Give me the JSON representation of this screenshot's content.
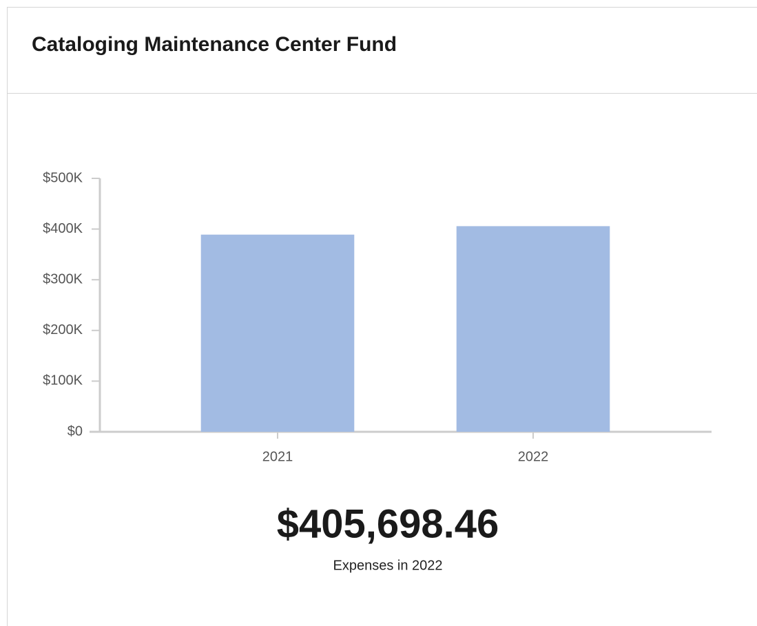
{
  "chart_data": {
    "type": "bar",
    "title": "Cataloging Maintenance Center Fund",
    "categories": [
      "2021",
      "2022"
    ],
    "values": [
      389000,
      405698.46
    ],
    "value_labels": [
      null,
      "$405,698.46"
    ],
    "caption": "Expenses in 2022",
    "color": "#a2bbe3",
    "ylim": [
      0,
      500000
    ],
    "yticks": [
      {
        "value": 0,
        "label": "$0"
      },
      {
        "value": 100000,
        "label": "$100K"
      },
      {
        "value": 200000,
        "label": "$200K"
      },
      {
        "value": 300000,
        "label": "$300K"
      },
      {
        "value": 400000,
        "label": "$400K"
      },
      {
        "value": 500000,
        "label": "$500K"
      }
    ],
    "grid": false
  }
}
